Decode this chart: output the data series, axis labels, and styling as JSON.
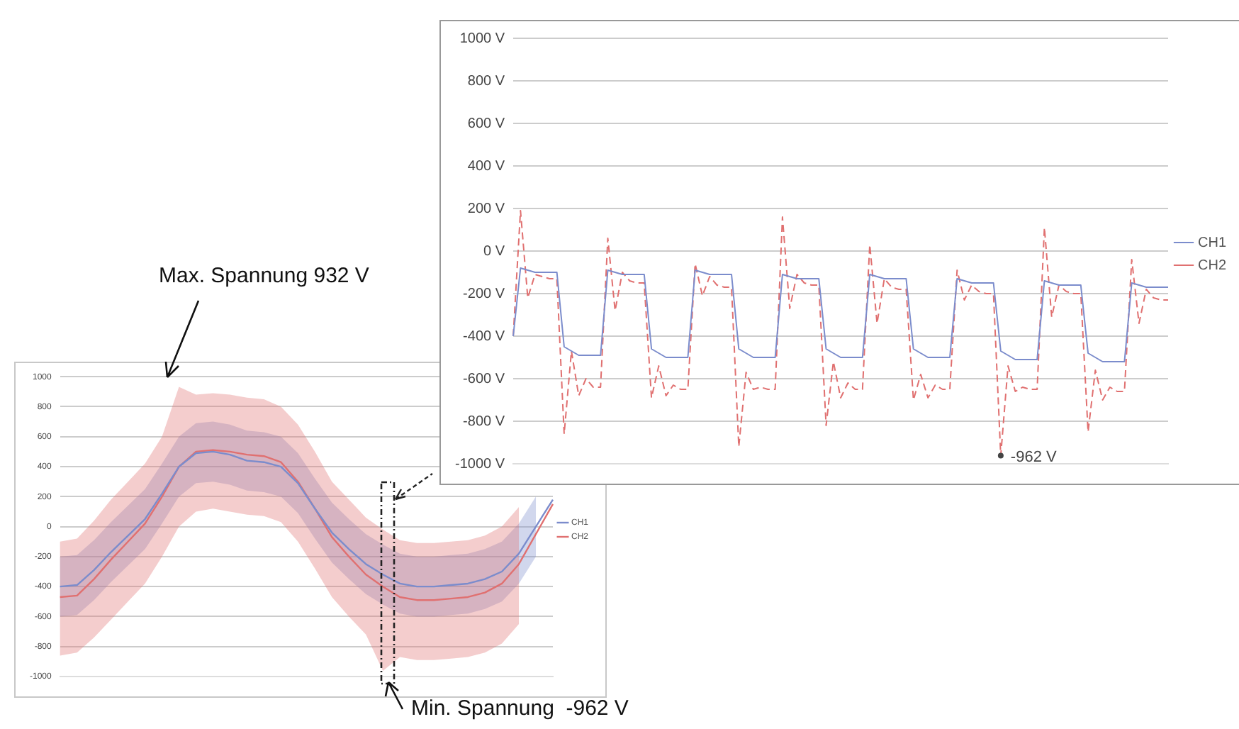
{
  "chart_data": [
    {
      "type": "line",
      "categories": [
        null,
        null,
        null,
        null,
        null,
        null,
        null,
        null,
        null,
        null,
        null,
        null,
        null,
        null,
        null,
        null,
        null,
        null,
        null,
        null,
        null,
        null,
        null,
        null,
        null,
        null,
        null,
        null,
        null,
        null
      ],
      "series": [
        {
          "name": "CH1",
          "color": "#7b8ccc",
          "values": [
            -400,
            -390,
            -290,
            -170,
            -60,
            50,
            220,
            400,
            490,
            500,
            480,
            440,
            430,
            400,
            290,
            120,
            -40,
            -150,
            -250,
            -320,
            -380,
            -400,
            -400,
            -390,
            -380,
            -350,
            -300,
            -180,
            0,
            180
          ],
          "lower": [
            -600,
            -590,
            -490,
            -370,
            -260,
            -150,
            20,
            200,
            290,
            300,
            280,
            240,
            230,
            200,
            90,
            -80,
            -240,
            -350,
            -450,
            -520,
            -580,
            -600,
            -600,
            -590,
            -580,
            -550,
            -500,
            -380,
            -200,
            null
          ],
          "upper": [
            -200,
            -190,
            -90,
            30,
            140,
            250,
            420,
            600,
            690,
            700,
            680,
            640,
            630,
            600,
            490,
            320,
            160,
            50,
            -50,
            -120,
            -180,
            -200,
            -200,
            -190,
            -180,
            -150,
            -100,
            20,
            200,
            null
          ]
        },
        {
          "name": "CH2",
          "color": "#e07070",
          "values": [
            -470,
            -460,
            -350,
            -220,
            -100,
            20,
            200,
            400,
            500,
            510,
            500,
            480,
            470,
            430,
            300,
            120,
            -70,
            -200,
            -320,
            -400,
            -470,
            -490,
            -490,
            -480,
            -470,
            -440,
            -380,
            -250,
            -50,
            150
          ],
          "lower": [
            -860,
            -840,
            -740,
            -620,
            -500,
            -380,
            -200,
            0,
            100,
            120,
            100,
            80,
            70,
            30,
            -100,
            -280,
            -470,
            -600,
            -720,
            -962,
            -870,
            -890,
            -890,
            -880,
            -870,
            -840,
            -780,
            -650,
            null,
            null
          ],
          "upper": [
            -100,
            -80,
            40,
            180,
            300,
            420,
            600,
            932,
            880,
            890,
            880,
            860,
            850,
            800,
            680,
            500,
            300,
            180,
            60,
            -20,
            -90,
            -110,
            -110,
            -100,
            -90,
            -60,
            0,
            130,
            null,
            null
          ]
        }
      ],
      "ylim": [
        -1000,
        1000
      ],
      "yticks": [
        -1000,
        -800,
        -600,
        -400,
        -200,
        0,
        200,
        400,
        600,
        800,
        1000
      ],
      "grid": "y",
      "legend": "right",
      "marker": "none",
      "tick_labels": "y",
      "annotations": [
        "Max. Spannung 932 V",
        "Min. Spannung  -962 V"
      ]
    },
    {
      "type": "line",
      "categories": [
        null,
        null,
        null,
        null,
        null,
        null,
        null,
        null,
        null,
        null,
        null,
        null,
        null,
        null,
        null,
        null,
        null,
        null,
        null,
        null,
        null,
        null,
        null,
        null,
        null,
        null,
        null,
        null,
        null,
        null,
        null,
        null,
        null,
        null,
        null,
        null,
        null,
        null,
        null,
        null,
        null,
        null,
        null,
        null,
        null,
        null,
        null,
        null,
        null,
        null,
        null,
        null,
        null,
        null,
        null,
        null,
        null,
        null,
        null,
        null,
        null,
        null,
        null,
        null,
        null,
        null,
        null,
        null,
        null,
        null,
        null,
        null,
        null,
        null,
        null,
        null,
        null,
        null,
        null,
        null,
        null,
        null,
        null,
        null,
        null,
        null,
        null,
        null,
        null,
        null,
        null
      ],
      "series": [
        {
          "name": "CH1",
          "color": "#7b8ccc",
          "values": [
            -400,
            -80,
            -90,
            -100,
            -100,
            -100,
            -100,
            -450,
            -470,
            -490,
            -490,
            -490,
            -490,
            -90,
            -100,
            -110,
            -110,
            -110,
            -110,
            -460,
            -480,
            -500,
            -500,
            -500,
            -500,
            -90,
            -100,
            -110,
            -110,
            -110,
            -110,
            -460,
            -480,
            -500,
            -500,
            -500,
            -500,
            -110,
            -120,
            -130,
            -130,
            -130,
            -130,
            -460,
            -480,
            -500,
            -500,
            -500,
            -500,
            -110,
            -120,
            -130,
            -130,
            -130,
            -130,
            -460,
            -480,
            -500,
            -500,
            -500,
            -500,
            -130,
            -140,
            -150,
            -150,
            -150,
            -150,
            -470,
            -490,
            -510,
            -510,
            -510,
            -510,
            -140,
            -150,
            -160,
            -160,
            -160,
            -160,
            -480,
            -500,
            -520,
            -520,
            -520,
            -520,
            -150,
            -160,
            -170,
            -170,
            -170,
            -170
          ]
        },
        {
          "name": "CH2",
          "color": "#e07070",
          "line_style": "dashed",
          "values": [
            -400,
            190,
            -220,
            -110,
            -120,
            -130,
            -130,
            -860,
            -470,
            -680,
            -600,
            -640,
            -640,
            60,
            -280,
            -100,
            -140,
            -150,
            -150,
            -690,
            -540,
            -680,
            -630,
            -650,
            -650,
            -60,
            -210,
            -120,
            -160,
            -170,
            -170,
            -920,
            -570,
            -650,
            -640,
            -650,
            -650,
            160,
            -270,
            -110,
            -150,
            -160,
            -160,
            -820,
            -520,
            -690,
            -620,
            -650,
            -650,
            30,
            -340,
            -130,
            -170,
            -180,
            -180,
            -700,
            -580,
            -690,
            -630,
            -650,
            -650,
            -90,
            -230,
            -160,
            -190,
            -200,
            -200,
            -962,
            -540,
            -660,
            -640,
            -650,
            -650,
            110,
            -310,
            -160,
            -190,
            -200,
            -200,
            -850,
            -560,
            -700,
            -640,
            -660,
            -660,
            -40,
            -340,
            -180,
            -220,
            -230,
            -230
          ]
        }
      ],
      "ylim": [
        -1000,
        1000
      ],
      "yticks": [
        {
          "value": -1000,
          "label": "-1000 V"
        },
        {
          "value": -800,
          "label": "-800 V"
        },
        {
          "value": -600,
          "label": "-600 V"
        },
        {
          "value": -400,
          "label": "-400 V"
        },
        {
          "value": -200,
          "label": "-200 V"
        },
        {
          "value": 0,
          "label": "0 V"
        },
        {
          "value": 200,
          "label": "200 V"
        },
        {
          "value": 400,
          "label": "400 V"
        },
        {
          "value": 600,
          "label": "600 V"
        },
        {
          "value": 800,
          "label": "800 V"
        },
        {
          "value": 1000,
          "label": "1000 V"
        }
      ],
      "grid": "y",
      "legend": "right",
      "marker": "none",
      "tick_labels": "y",
      "annotations": [
        "-962 V"
      ]
    }
  ]
}
